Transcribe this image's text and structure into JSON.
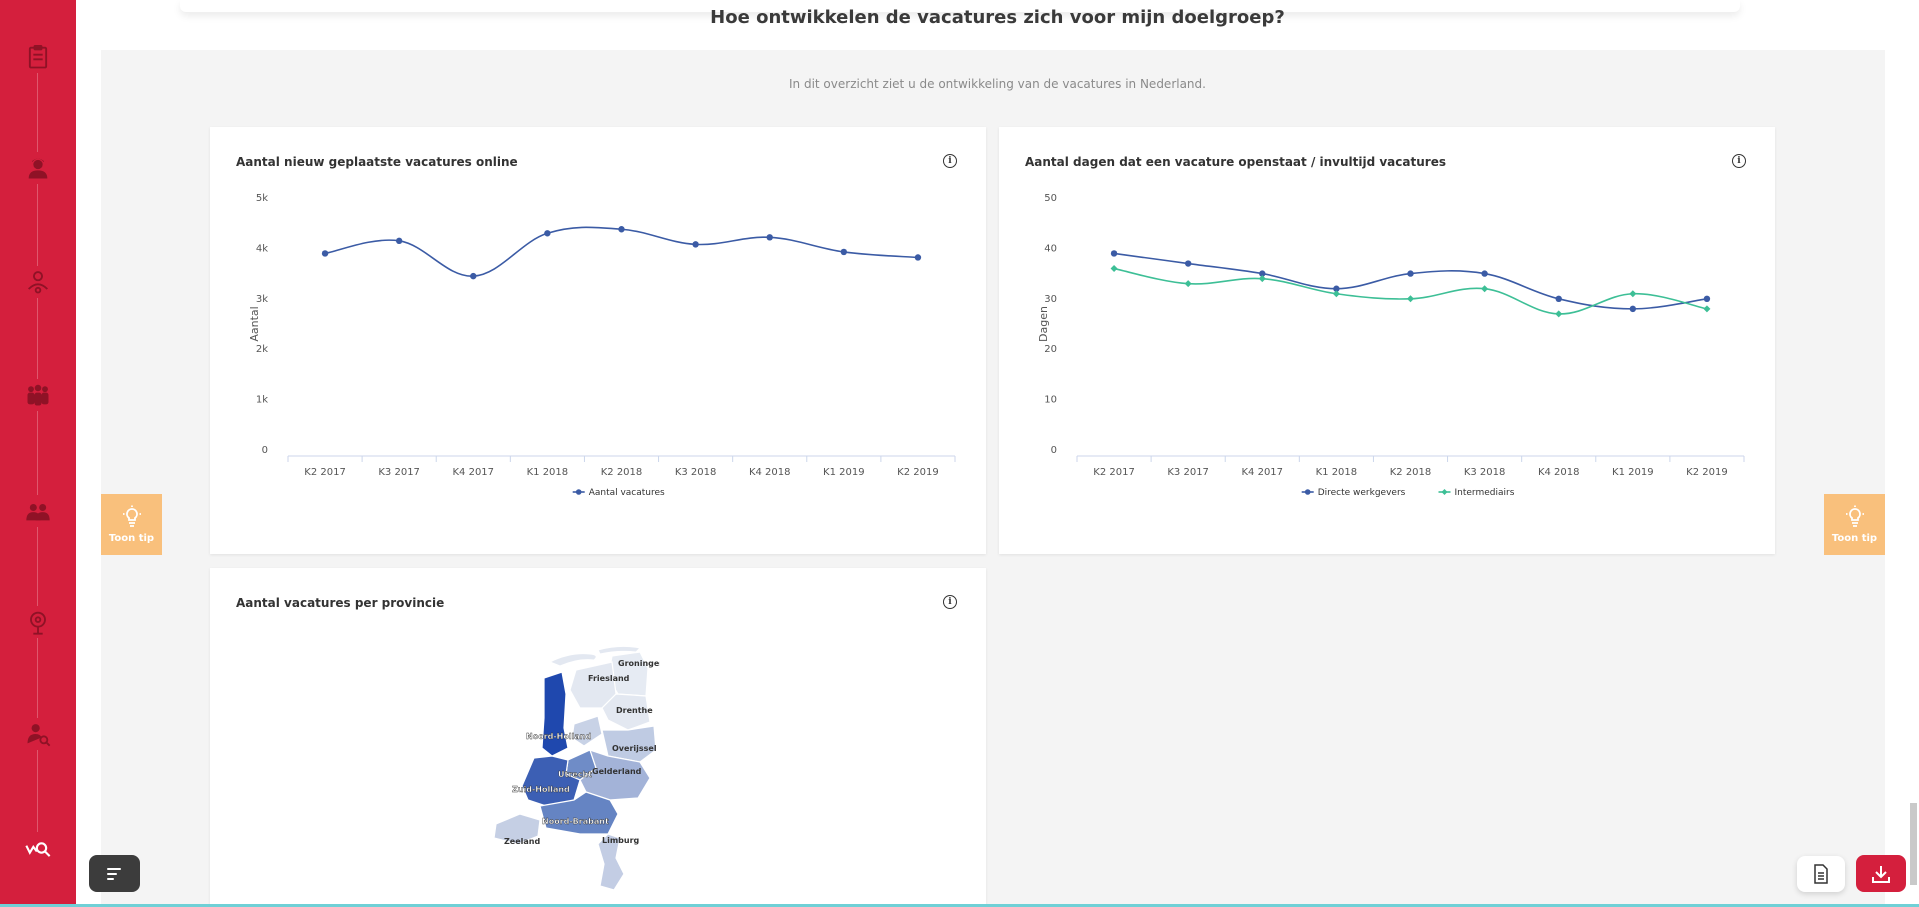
{
  "page": {
    "title": "Hoe ontwikkelen de vacatures zich voor mijn doelgroep?",
    "subtitle": "In dit overzicht ziet u de ontwikkeling van de vacatures in Nederland."
  },
  "sidebar": {
    "accent": "#d41f3d",
    "icons": [
      "clipboard-icon",
      "nurse-icon",
      "doctor-icon",
      "team-icon",
      "group-icon",
      "profile-settings-icon",
      "person-search-icon",
      "market-search-icon"
    ]
  },
  "tips": {
    "left_label": "Toon tip",
    "right_label": "Toon tip",
    "color": "#f9c07c"
  },
  "cards": {
    "new_vacancies": {
      "title": "Aantal nieuw geplaatste vacatures online"
    },
    "open_days": {
      "title": "Aantal dagen dat een vacature openstaat / invultijd vacatures"
    },
    "per_province": {
      "title": "Aantal vacatures per provincie"
    }
  },
  "chart_data": [
    {
      "type": "line",
      "title": "Aantal nieuw geplaatste vacatures online",
      "ylabel": "Aantal",
      "ylim": [
        0,
        5000
      ],
      "yticks": [
        "0",
        "1k",
        "2k",
        "3k",
        "4k",
        "5k"
      ],
      "categories": [
        "K2 2017",
        "K3 2017",
        "K4 2017",
        "K1 2018",
        "K2 2018",
        "K3 2018",
        "K4 2018",
        "K1 2019",
        "K2 2019"
      ],
      "series": [
        {
          "name": "Aantal vacatures",
          "color": "#3b5ba5",
          "values": [
            3900,
            4150,
            3450,
            4300,
            4380,
            4080,
            4220,
            3930,
            3820
          ]
        }
      ],
      "legend": "bottom-center",
      "grid": false
    },
    {
      "type": "line",
      "title": "Aantal dagen dat een vacature openstaat / invultijd vacatures",
      "ylabel": "Dagen",
      "ylim": [
        0,
        50
      ],
      "yticks": [
        "0",
        "10",
        "20",
        "30",
        "40",
        "50"
      ],
      "categories": [
        "K2 2017",
        "K3 2017",
        "K4 2017",
        "K1 2018",
        "K2 2018",
        "K3 2018",
        "K4 2018",
        "K1 2019",
        "K2 2019"
      ],
      "series": [
        {
          "name": "Directe werkgevers",
          "color": "#3b5ba5",
          "values": [
            39,
            37,
            35,
            32,
            35,
            35,
            30,
            28,
            30
          ]
        },
        {
          "name": "Intermediairs",
          "color": "#3dbf96",
          "values": [
            36,
            33,
            34,
            31,
            30,
            32,
            27,
            31,
            28
          ]
        }
      ],
      "legend": "bottom-center",
      "grid": false
    }
  ],
  "map": {
    "provinces": [
      "Groningen",
      "Friesland",
      "Drenthe",
      "Noord-Holland",
      "Overijssel",
      "Utrecht",
      "Gelderland",
      "Zuid-Holland",
      "Noord-Brabant",
      "Zeeland",
      "Limburg"
    ]
  },
  "buttons": {
    "menu": "menu-icon",
    "document": "document-icon",
    "download": "download-icon"
  }
}
